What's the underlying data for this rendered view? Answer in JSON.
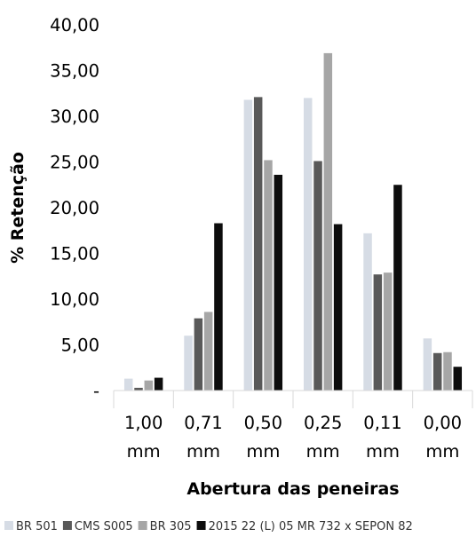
{
  "chart_data": {
    "type": "bar",
    "title": "",
    "xlabel": "Abertura das peneiras",
    "ylabel": "% Retenção",
    "ylim": [
      0,
      40
    ],
    "yticks": [
      0,
      5,
      10,
      15,
      20,
      25,
      30,
      35,
      40
    ],
    "ytick_labels": [
      "-",
      "5,00",
      "10,00",
      "15,00",
      "20,00",
      "25,00",
      "30,00",
      "35,00",
      "40,00"
    ],
    "categories": [
      [
        "1,00",
        "mm"
      ],
      [
        "0,71",
        "mm"
      ],
      [
        "0,50",
        "mm"
      ],
      [
        "0,25",
        "mm"
      ],
      [
        "0,11",
        "mm"
      ],
      [
        "0,00",
        "mm"
      ]
    ],
    "grid": false,
    "legend_position": "bottom",
    "series": [
      {
        "name": "BR 501",
        "color": "#d6dce5",
        "values": [
          1.3,
          6.0,
          31.8,
          32.0,
          17.2,
          5.7
        ]
      },
      {
        "name": "CMS S005",
        "color": "#595959",
        "values": [
          0.3,
          7.9,
          32.1,
          25.1,
          12.7,
          4.1
        ]
      },
      {
        "name": "BR 305",
        "color": "#a6a6a6",
        "values": [
          1.1,
          8.6,
          25.2,
          36.9,
          12.9,
          4.2
        ]
      },
      {
        "name": "2015 22 (L) 05 MR 732 x SEPON 82",
        "color": "#0d0d0d",
        "values": [
          1.4,
          18.3,
          23.6,
          18.2,
          22.5,
          2.6
        ]
      }
    ]
  }
}
